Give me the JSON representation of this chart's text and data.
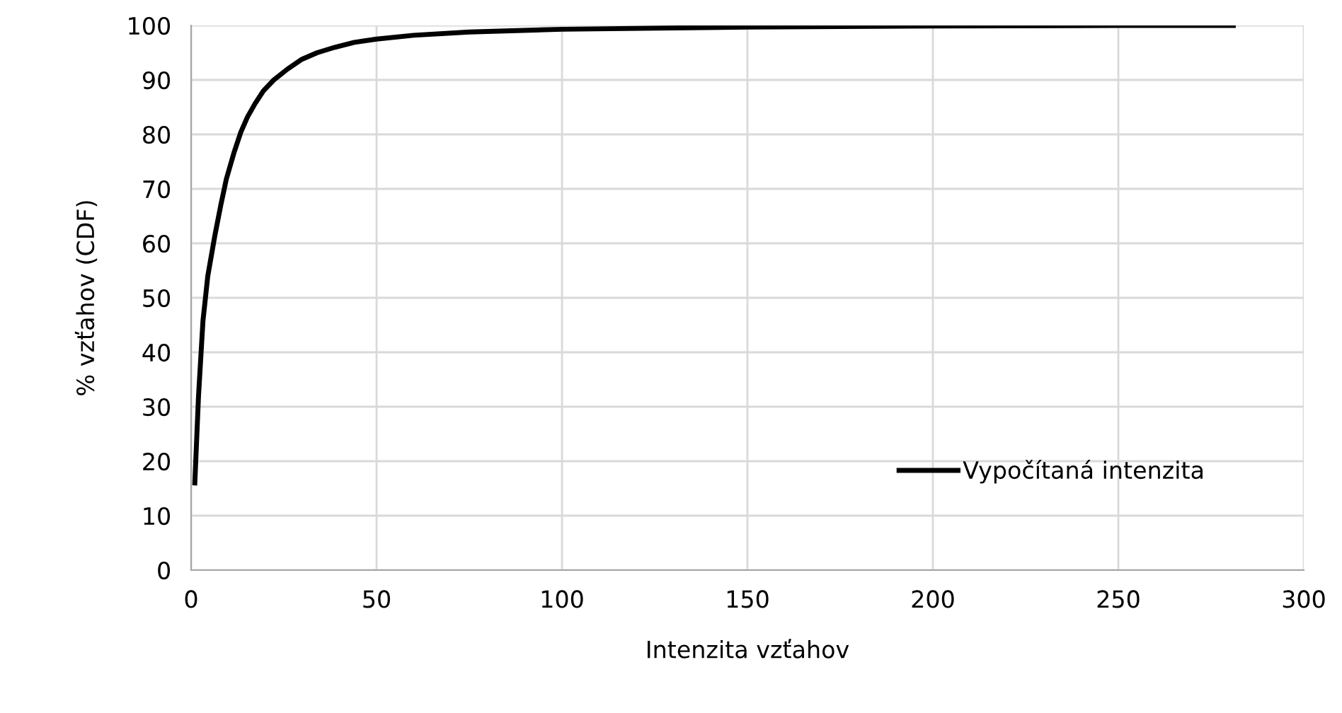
{
  "chart_data": {
    "type": "line",
    "xlabel": "Intenzita vzťahov",
    "ylabel": "% vzťahov (CDF)",
    "series": [
      {
        "name": "Vypočítaná intenzita",
        "color": "#000000",
        "x": [
          1,
          2,
          3.2,
          4.5,
          6.4,
          8,
          9.5,
          11.5,
          13.4,
          15.2,
          17.2,
          19.5,
          22.3,
          26,
          29.9,
          34,
          38.8,
          44,
          50,
          60,
          75,
          100,
          150,
          200,
          250,
          281
        ],
        "values": [
          16,
          32,
          45.8,
          54,
          61.4,
          67,
          71.8,
          76.5,
          80.4,
          83.2,
          85.6,
          88,
          90,
          92,
          93.8,
          95,
          96,
          96.9,
          97.5,
          98.2,
          98.8,
          99.3,
          99.7,
          99.9,
          100,
          100
        ]
      }
    ],
    "xlim": [
      0,
      300
    ],
    "ylim": [
      0,
      100
    ],
    "xticks": [
      0,
      50,
      100,
      150,
      200,
      250,
      300
    ],
    "yticks": [
      0,
      10,
      20,
      30,
      40,
      50,
      60,
      70,
      80,
      90,
      100
    ],
    "grid": true,
    "legend": "bottom right",
    "marker": "none",
    "line_style": "solid"
  }
}
